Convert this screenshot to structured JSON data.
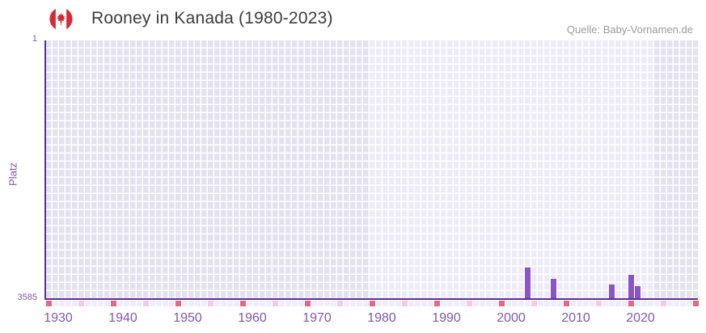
{
  "header": {
    "title": "Rooney in Kanada (1980-2023)",
    "flag_icon": "canada-flag-icon",
    "source": "Quelle: Baby-Vornamen.de"
  },
  "chart_data": {
    "type": "bar",
    "title": "Rooney in Kanada (1980-2023)",
    "ylabel": "Platz",
    "xlabel": "",
    "y_axis": {
      "ticks": [
        "1",
        "3585"
      ],
      "min": 1,
      "max": 3585,
      "inverted": true
    },
    "x_axis": {
      "tick_labels": [
        "1930",
        "1940",
        "1950",
        "1960",
        "1970",
        "1980",
        "1990",
        "2000",
        "2010",
        "2020"
      ],
      "plot_start_year": 1930,
      "plot_end_year": 2030,
      "data_start_year": 1980,
      "data_end_year": 2023,
      "marker_legend": "red = decade year, pink = half-decade year"
    },
    "series": [
      {
        "name": "Platz",
        "points": [
          {
            "year": 2004,
            "rank": 3160
          },
          {
            "year": 2008,
            "rank": 3315
          },
          {
            "year": 2017,
            "rank": 3395
          },
          {
            "year": 2020,
            "rank": 3260
          },
          {
            "year": 2021,
            "rank": 3420
          }
        ]
      }
    ],
    "legend": false,
    "grid": true,
    "colors": {
      "bar": "#8b54c6",
      "axis": "#5b3097",
      "tick_label": "#7e57b5",
      "plot_bg_in_range": "#eeebf8",
      "plot_bg_out_of_range": "#e4e1f0",
      "grid_line": "#ffffff",
      "decade_marker": "#e5697c",
      "half_decade_marker": "#f3cdd9",
      "year_marker": "#f0edf9",
      "title": "#3c3c3c",
      "source": "#9b9b9b",
      "flag_red": "#d52b35"
    }
  }
}
